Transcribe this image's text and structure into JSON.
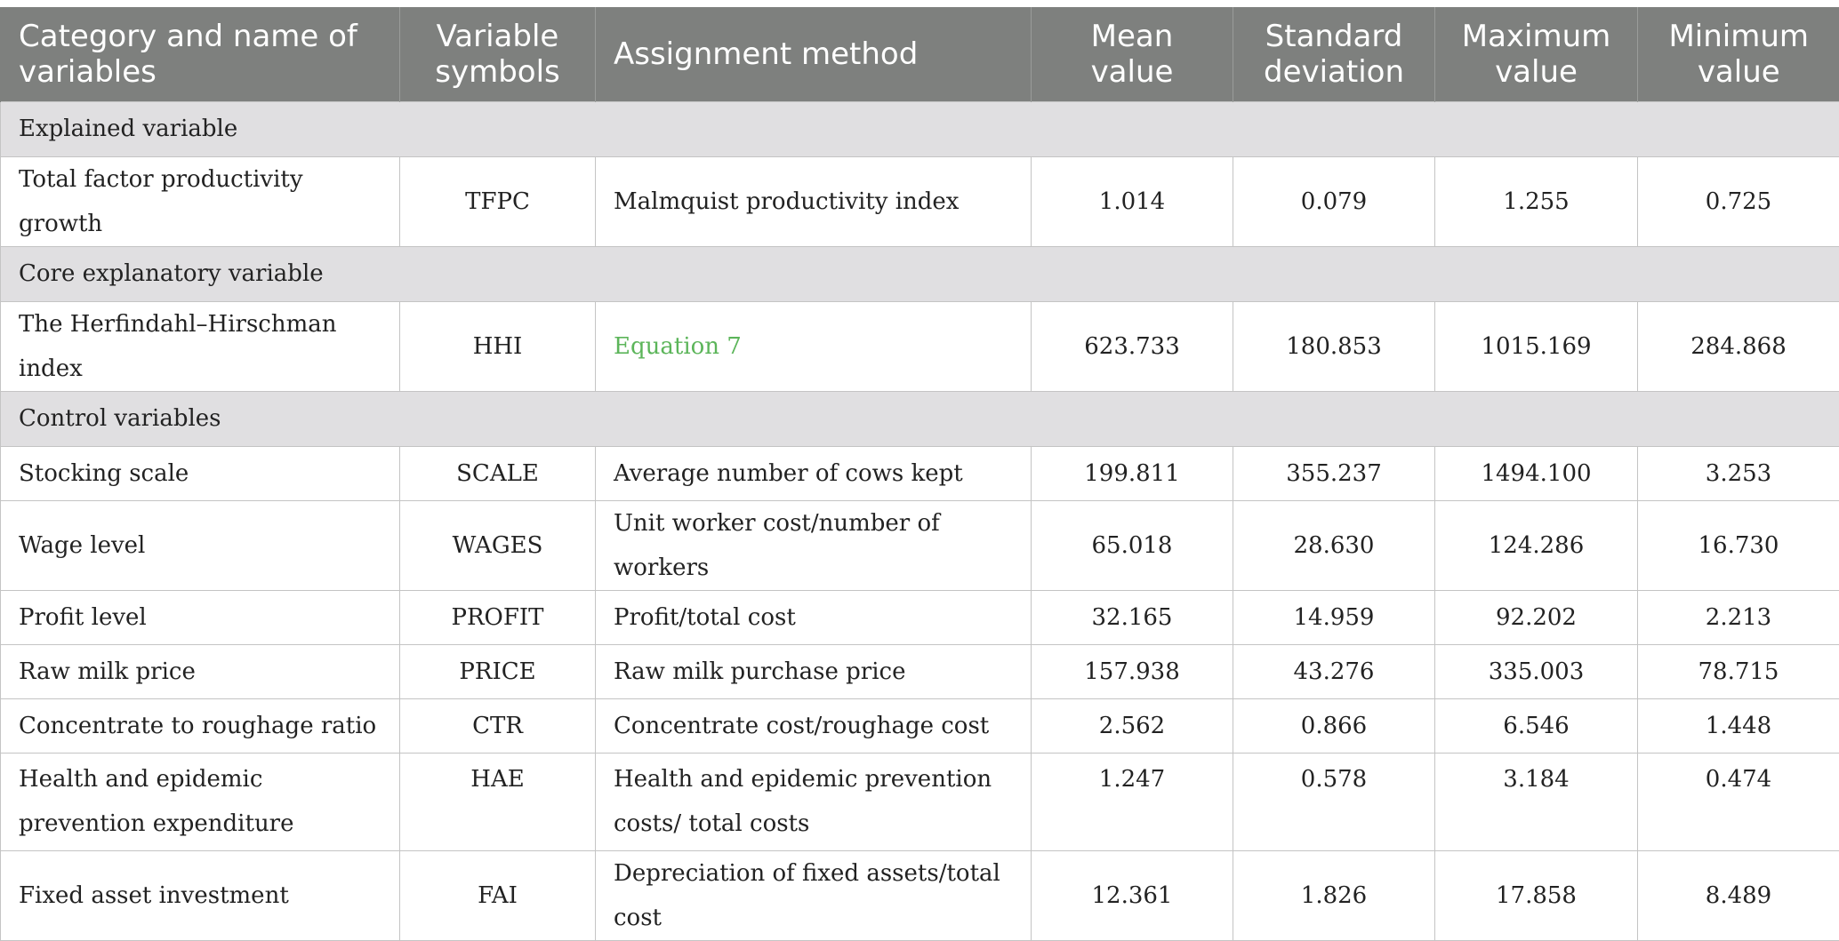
{
  "table": {
    "headers": [
      "Category and name of variables",
      "Variable symbols",
      "Assignment method",
      "Mean value",
      "Standard deviation",
      "Maximum value",
      "Minimum value"
    ],
    "sections": [
      {
        "label": "Explained variable",
        "rows": [
          {
            "name": "Total factor productivity growth",
            "symbol": "TFPC",
            "method": "Malmquist productivity index",
            "mean": "1.014",
            "sd": "0.079",
            "max": "1.255",
            "min": "0.725"
          }
        ]
      },
      {
        "label": "Core explanatory variable",
        "rows": [
          {
            "name": "The Herfindahl–Hirschman index",
            "symbol": "HHI",
            "method": "Equation 7",
            "mean": "623.733",
            "sd": "180.853",
            "max": "1015.169",
            "min": "284.868"
          }
        ]
      },
      {
        "label": "Control variables",
        "rows": [
          {
            "name": "Stocking scale",
            "symbol": "SCALE",
            "method": "Average number of cows kept",
            "mean": "199.811",
            "sd": "355.237",
            "max": "1494.100",
            "min": "3.253"
          },
          {
            "name": "Wage level",
            "symbol": "WAGES",
            "method": "Unit worker cost/number of workers",
            "mean": "65.018",
            "sd": "28.630",
            "max": "124.286",
            "min": "16.730"
          },
          {
            "name": "Profit level",
            "symbol": "PROFIT",
            "method": "Profit/total cost",
            "mean": "32.165",
            "sd": "14.959",
            "max": "92.202",
            "min": "2.213"
          },
          {
            "name": "Raw milk price",
            "symbol": "PRICE",
            "method": "Raw milk purchase price",
            "mean": "157.938",
            "sd": "43.276",
            "max": "335.003",
            "min": "78.715"
          },
          {
            "name": "Concentrate to roughage ratio",
            "symbol": "CTR",
            "method": "Concentrate cost/roughage cost",
            "mean": "2.562",
            "sd": "0.866",
            "max": "6.546",
            "min": "1.448"
          },
          {
            "name": "Health and epidemic prevention expenditure",
            "symbol": "HAE",
            "method": "Health and epidemic prevention costs/ total costs",
            "mean": "1.247",
            "sd": "0.578",
            "max": "3.184",
            "min": "0.474"
          },
          {
            "name": "Fixed asset investment",
            "symbol": "FAI",
            "method": "Depreciation of fixed assets/total cost",
            "mean": "12.361",
            "sd": "1.826",
            "max": "17.858",
            "min": "8.489"
          }
        ]
      }
    ]
  },
  "colors": {
    "header_bg": "#7e807e",
    "section_bg": "#e0dfe1",
    "link": "#5cb55a"
  }
}
